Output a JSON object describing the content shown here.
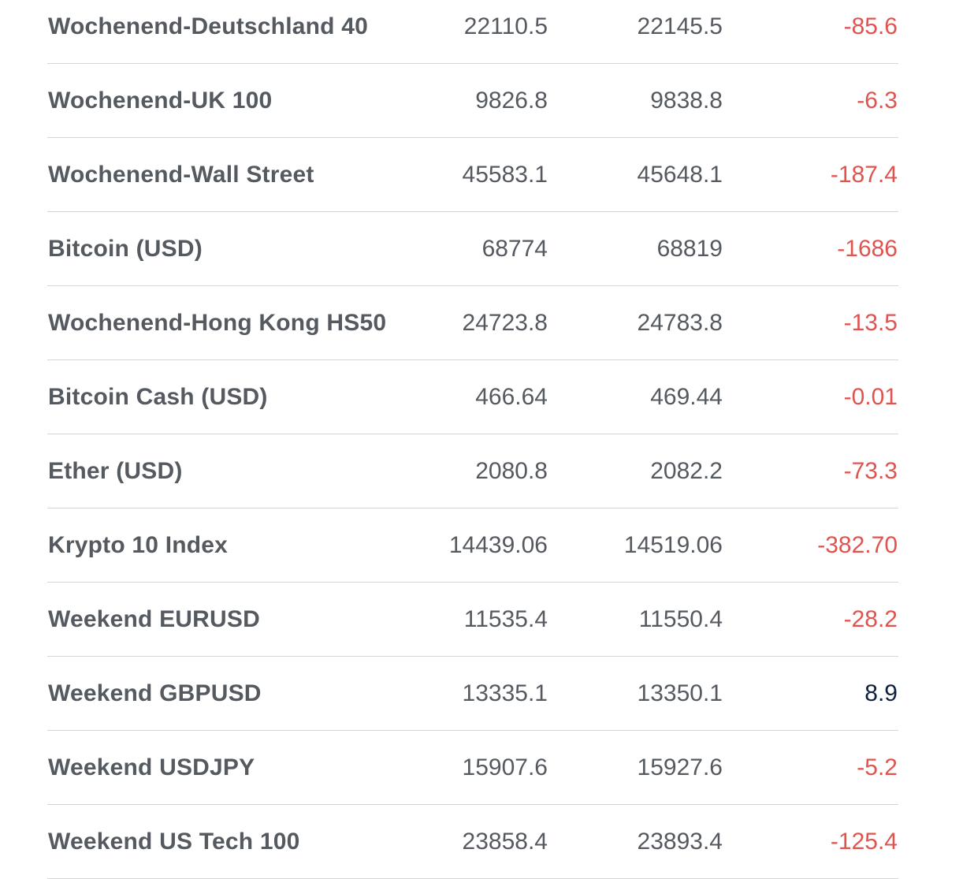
{
  "colors": {
    "negative": "#e0534f",
    "positive": "#0f1f3d",
    "text": "#555a60"
  },
  "rows": [
    {
      "name": "Wochenend-Deutschland 40",
      "sell": "22110.5",
      "buy": "22145.5",
      "change": "-85.6"
    },
    {
      "name": "Wochenend-UK 100",
      "sell": "9826.8",
      "buy": "9838.8",
      "change": "-6.3"
    },
    {
      "name": "Wochenend-Wall Street",
      "sell": "45583.1",
      "buy": "45648.1",
      "change": "-187.4"
    },
    {
      "name": "Bitcoin (USD)",
      "sell": "68774",
      "buy": "68819",
      "change": "-1686"
    },
    {
      "name": "Wochenend-Hong Kong HS50",
      "sell": "24723.8",
      "buy": "24783.8",
      "change": "-13.5"
    },
    {
      "name": "Bitcoin Cash (USD)",
      "sell": "466.64",
      "buy": "469.44",
      "change": "-0.01"
    },
    {
      "name": "Ether (USD)",
      "sell": "2080.8",
      "buy": "2082.2",
      "change": "-73.3"
    },
    {
      "name": "Krypto 10 Index",
      "sell": "14439.06",
      "buy": "14519.06",
      "change": "-382.70"
    },
    {
      "name": "Weekend EURUSD",
      "sell": "11535.4",
      "buy": "11550.4",
      "change": "-28.2"
    },
    {
      "name": "Weekend GBPUSD",
      "sell": "13335.1",
      "buy": "13350.1",
      "change": "8.9"
    },
    {
      "name": "Weekend USDJPY",
      "sell": "15907.6",
      "buy": "15927.6",
      "change": "-5.2"
    },
    {
      "name": "Weekend US Tech 100",
      "sell": "23858.4",
      "buy": "23893.4",
      "change": "-125.4"
    }
  ]
}
